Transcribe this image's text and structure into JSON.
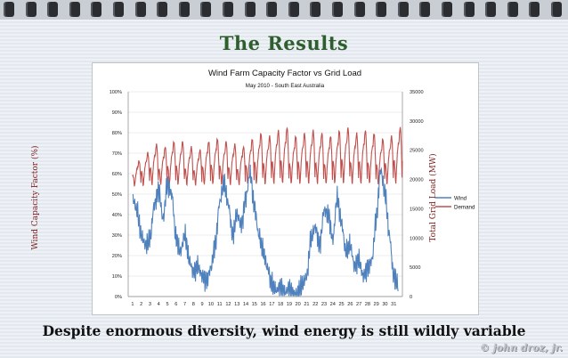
{
  "slide": {
    "title": "The Results",
    "caption": "Despite enormous diversity, wind energy is still wildly variable",
    "credit": "© john droz, jr."
  },
  "chart_data": {
    "type": "line",
    "title": "Wind Farm Capacity Factor vs Grid Load",
    "subtitle": "May 2010 - South East Australia",
    "xlabel": "",
    "ylabel_left": "Wind Capacity Factor (%)",
    "ylabel_right": "Total Grid Load (MW)",
    "x_ticks": [
      "1",
      "2",
      "3",
      "4",
      "5",
      "6",
      "7",
      "8",
      "9",
      "10",
      "11",
      "12",
      "13",
      "14",
      "15",
      "16",
      "17",
      "18",
      "19",
      "20",
      "21",
      "22",
      "23",
      "24",
      "25",
      "26",
      "27",
      "28",
      "29",
      "30",
      "31"
    ],
    "y_left_ticks": [
      "0%",
      "10%",
      "20%",
      "30%",
      "40%",
      "50%",
      "60%",
      "70%",
      "80%",
      "90%",
      "100%"
    ],
    "y_right_ticks": [
      "0",
      "5000",
      "10000",
      "15000",
      "20000",
      "25000",
      "30000",
      "35000"
    ],
    "ylim_left": [
      0,
      100
    ],
    "ylim_right": [
      0,
      35000
    ],
    "legend_position": "right",
    "colors": {
      "wind": "#4f81bd",
      "demand": "#c0504d"
    },
    "series": [
      {
        "name": "Wind",
        "axis": "left",
        "unit": "%",
        "x_day": [
          1,
          1.5,
          2,
          2.5,
          3,
          3.5,
          4,
          4.5,
          5,
          5.5,
          6,
          6.5,
          7,
          7.5,
          8,
          8.5,
          9,
          9.5,
          10,
          10.5,
          11,
          11.5,
          12,
          12.5,
          13,
          13.5,
          14,
          14.5,
          15,
          15.5,
          16,
          16.5,
          17,
          17.5,
          18,
          18.5,
          19,
          19.5,
          20,
          20.5,
          21,
          21.5,
          22,
          22.5,
          23,
          23.5,
          24,
          24.5,
          25,
          25.5,
          26,
          26.5,
          27,
          27.5,
          28,
          28.5,
          29,
          29.5,
          30,
          30.5,
          31,
          31.5
        ],
        "values": [
          48,
          42,
          30,
          25,
          28,
          45,
          52,
          38,
          55,
          50,
          28,
          22,
          30,
          18,
          12,
          15,
          10,
          8,
          14,
          25,
          46,
          55,
          45,
          30,
          40,
          35,
          48,
          60,
          44,
          30,
          22,
          14,
          6,
          3,
          5,
          2,
          4,
          1,
          2,
          6,
          10,
          28,
          34,
          25,
          42,
          40,
          28,
          48,
          36,
          22,
          25,
          15,
          18,
          10,
          14,
          18,
          38,
          62,
          50,
          30,
          10,
          6
        ]
      },
      {
        "name": "Demand",
        "axis": "right",
        "unit": "MW",
        "daily_peaks_mw": [
          23500,
          25000,
          26500,
          26000,
          27000,
          27000,
          26000,
          25500,
          27000,
          27500,
          27000,
          26500,
          26000,
          27500,
          28500,
          28000,
          29000,
          29500,
          28000,
          28500,
          29000,
          28500,
          28000,
          29000,
          29500,
          28500,
          29000,
          28500,
          27500,
          28000,
          29500
        ],
        "daily_troughs_mw": [
          18500,
          18500,
          18500,
          18500,
          18500,
          18500,
          18500,
          18500,
          18500,
          18500,
          18500,
          18500,
          18500,
          18500,
          18500,
          18500,
          18500,
          18500,
          18500,
          18500,
          18500,
          18500,
          18500,
          18500,
          18500,
          18500,
          18500,
          18500,
          18500,
          18500,
          18500
        ]
      }
    ]
  }
}
